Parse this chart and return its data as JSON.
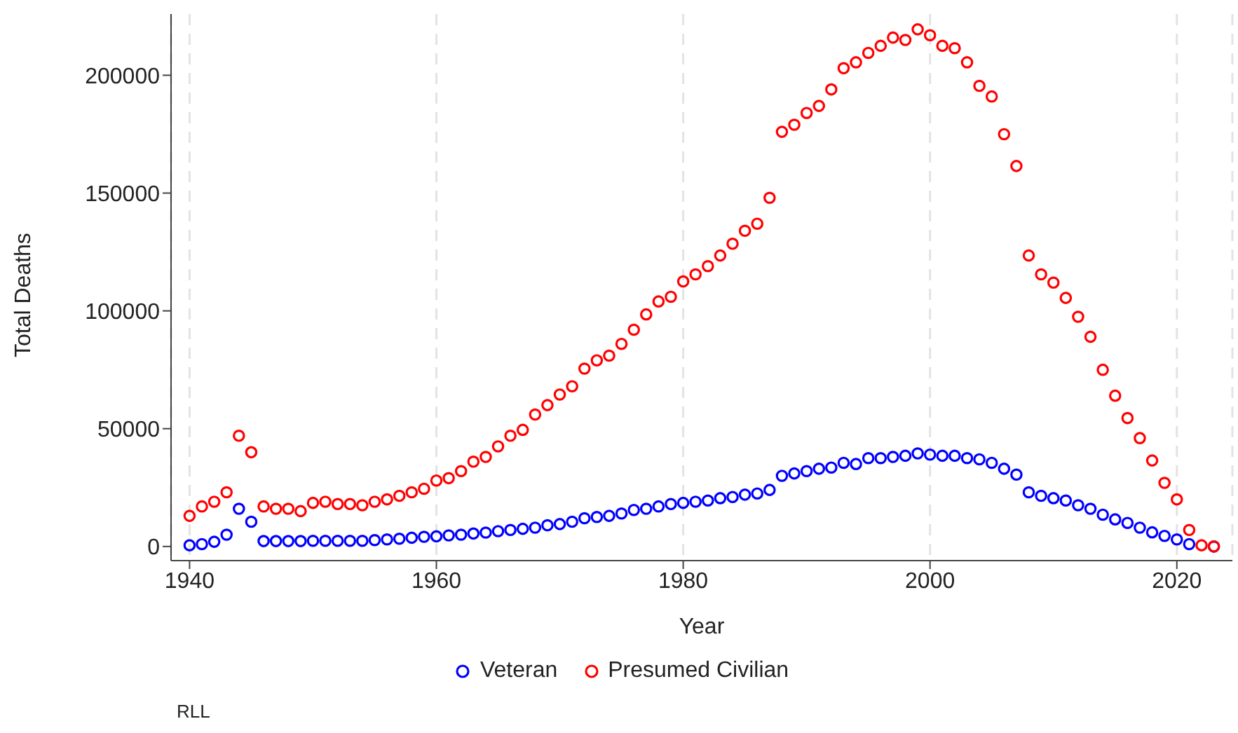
{
  "chart_data": {
    "type": "scatter",
    "xlabel": "Year",
    "ylabel": "Total Deaths",
    "x": [
      1940,
      1941,
      1942,
      1943,
      1944,
      1945,
      1946,
      1947,
      1948,
      1949,
      1950,
      1951,
      1952,
      1953,
      1954,
      1955,
      1956,
      1957,
      1958,
      1959,
      1960,
      1961,
      1962,
      1963,
      1964,
      1965,
      1966,
      1967,
      1968,
      1969,
      1970,
      1971,
      1972,
      1973,
      1974,
      1975,
      1976,
      1977,
      1978,
      1979,
      1980,
      1981,
      1982,
      1983,
      1984,
      1985,
      1986,
      1987,
      1988,
      1989,
      1990,
      1991,
      1992,
      1993,
      1994,
      1995,
      1996,
      1997,
      1998,
      1999,
      2000,
      2001,
      2002,
      2003,
      2004,
      2005,
      2006,
      2007,
      2008,
      2009,
      2010,
      2011,
      2012,
      2013,
      2014,
      2015,
      2016,
      2017,
      2018,
      2019,
      2020,
      2021,
      2022,
      2023
    ],
    "series": [
      {
        "name": "Veteran",
        "color": "#0000ff",
        "values": [
          500,
          1000,
          2000,
          5000,
          16000,
          10500,
          2300,
          2300,
          2300,
          2300,
          2400,
          2400,
          2400,
          2400,
          2400,
          2700,
          3000,
          3300,
          3700,
          4100,
          4300,
          4700,
          5000,
          5500,
          5900,
          6500,
          7000,
          7500,
          8000,
          9000,
          9500,
          10500,
          12000,
          12500,
          13000,
          14000,
          15500,
          16000,
          17000,
          18000,
          18500,
          19000,
          19500,
          20500,
          21000,
          22000,
          22500,
          24000,
          30000,
          31000,
          32000,
          33000,
          33500,
          35500,
          35000,
          37500,
          37500,
          38000,
          38500,
          39500,
          39000,
          38500,
          38500,
          37500,
          37000,
          35500,
          33000,
          30500,
          23000,
          21500,
          20500,
          19500,
          17500,
          16000,
          13500,
          11500,
          10000,
          8000,
          6000,
          4500,
          3000,
          1000,
          null,
          0
        ]
      },
      {
        "name": "Presumed Civilian",
        "color": "#ff0000",
        "values": [
          13000,
          17000,
          19000,
          23000,
          47000,
          40000,
          17000,
          16000,
          16000,
          15000,
          18500,
          19000,
          18000,
          18000,
          17500,
          19000,
          20000,
          21500,
          23000,
          24500,
          28000,
          29000,
          32000,
          36000,
          38000,
          42500,
          47000,
          49500,
          56000,
          60000,
          64500,
          68000,
          75500,
          79000,
          81000,
          86000,
          92000,
          98500,
          104000,
          106000,
          112500,
          115500,
          119000,
          123500,
          128500,
          134000,
          137000,
          148000,
          176000,
          179000,
          184000,
          187000,
          194000,
          203000,
          205500,
          209500,
          212500,
          216000,
          215000,
          219500,
          217000,
          212500,
          211500,
          205500,
          195500,
          191000,
          175000,
          161500,
          123500,
          115500,
          112000,
          105500,
          97500,
          89000,
          75000,
          64000,
          54500,
          46000,
          36500,
          27000,
          20000,
          7000,
          500,
          0
        ]
      }
    ],
    "xlim": [
      1938.5,
      2024.5
    ],
    "xticks": [
      1940,
      1960,
      1980,
      2000,
      2020
    ],
    "ylim": [
      -6000,
      226000
    ],
    "yticks": [
      0,
      50000,
      100000,
      150000,
      200000
    ],
    "grid": "x",
    "legend": "bottom",
    "marker": "circle",
    "annotations": [
      "RLL"
    ]
  }
}
